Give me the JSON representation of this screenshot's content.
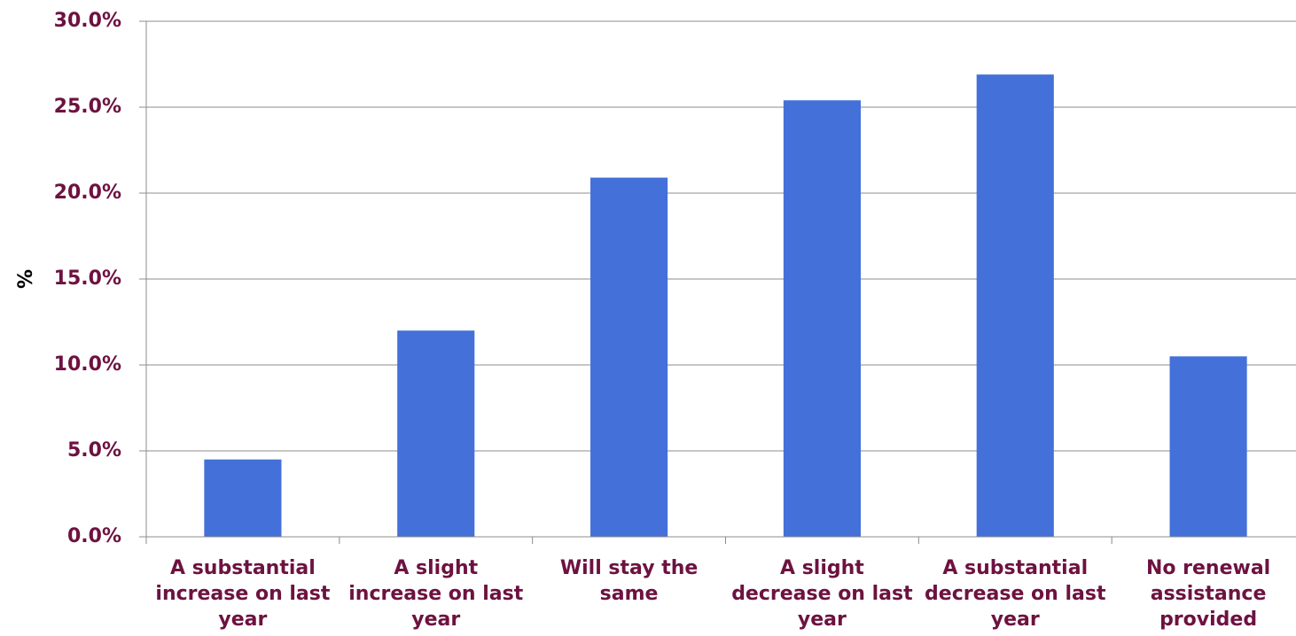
{
  "chart_data": {
    "type": "bar",
    "title": "",
    "xlabel": "",
    "ylabel": "%",
    "ylim": [
      0,
      30
    ],
    "yticks": [
      0,
      5,
      10,
      15,
      20,
      25,
      30
    ],
    "ytick_labels": [
      "0.0%",
      "5.0%",
      "10.0%",
      "15.0%",
      "20.0%",
      "25.0%",
      "30.0%"
    ],
    "categories": [
      [
        "A substantial",
        "increase on last",
        "year"
      ],
      [
        "A slight",
        "increase on last",
        "year"
      ],
      [
        "Will stay the",
        "same"
      ],
      [
        "A slight",
        "decrease on last",
        "year"
      ],
      [
        "A substantial",
        "decrease on last",
        "year"
      ],
      [
        "No renewal",
        "assistance",
        "provided"
      ]
    ],
    "values": [
      4.5,
      12.0,
      20.9,
      25.4,
      26.9,
      10.5
    ],
    "grid": true,
    "legend": "none",
    "colors": {
      "bar": "#4470d9",
      "label": "#6d1240",
      "grid": "#8c8c8c"
    }
  }
}
